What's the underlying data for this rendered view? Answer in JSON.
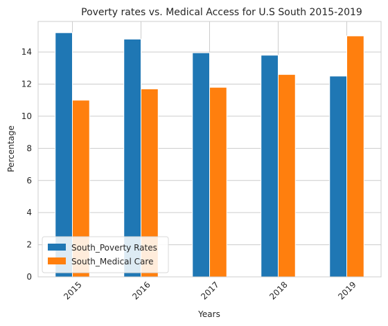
{
  "chart_data": {
    "type": "bar",
    "title": "Poverty rates vs. Medical Access for U.S South 2015-2019",
    "xlabel": "Years",
    "ylabel": "Percentage",
    "categories": [
      "2015",
      "2016",
      "2017",
      "2018",
      "2019"
    ],
    "series": [
      {
        "name": "South_Poverty Rates",
        "color": "#1f77b4",
        "values": [
          15.2,
          14.8,
          13.95,
          13.8,
          12.5
        ]
      },
      {
        "name": "South_Medical Care",
        "color": "#ff7f0e",
        "values": [
          11.0,
          11.7,
          11.8,
          12.6,
          15.0
        ]
      }
    ],
    "ylim": [
      0,
      15.9
    ],
    "yticks": [
      0,
      2,
      4,
      6,
      8,
      10,
      12,
      14
    ],
    "grid": true,
    "legend_position": "lower-left",
    "xtick_rotation": 45
  }
}
